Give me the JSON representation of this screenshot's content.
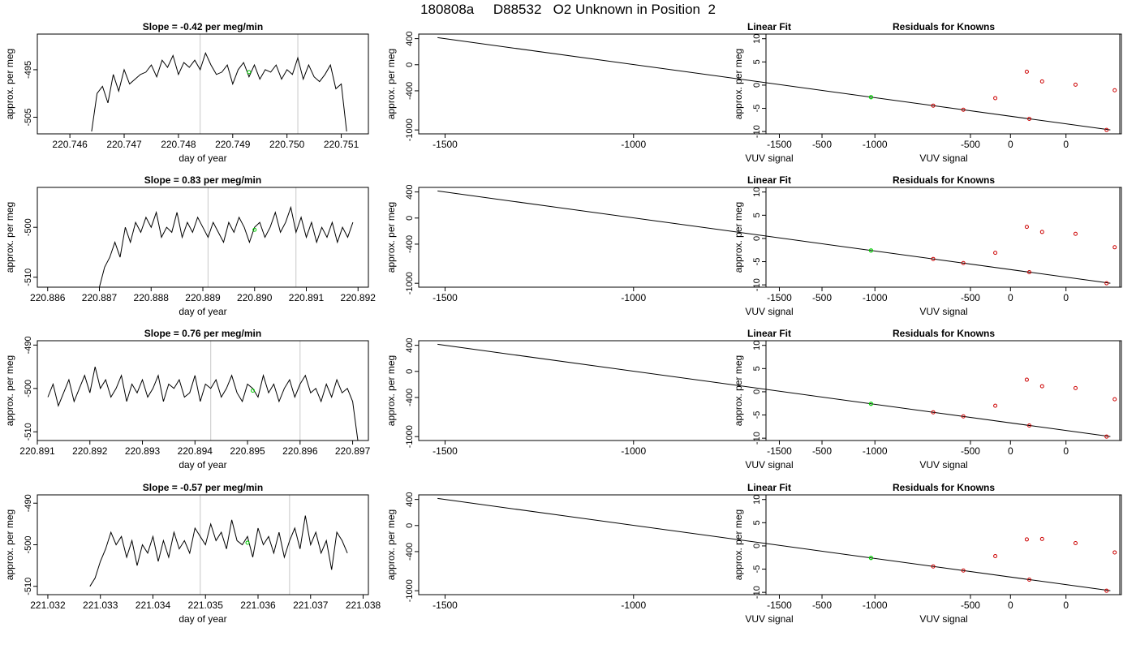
{
  "figure": {
    "title": "180808a     D88532   O2 Unknown in Position  2"
  },
  "colors": {
    "line": "#000000",
    "unknown_point": "#00cc00",
    "known_point": "#cc0000",
    "vline": "#c8c8c8"
  },
  "chart_data": [
    {
      "type": "line",
      "title": "Slope =  -0.42  per meg/min",
      "xlabel": "day of year",
      "ylabel": "approx. per meg",
      "xlim": [
        220.7454,
        220.7515
      ],
      "ylim": [
        -508.5,
        -487.5
      ],
      "xticks": [
        "220.746",
        "220.747",
        "220.748",
        "220.749",
        "220.750",
        "220.751"
      ],
      "yticks": [
        "-495",
        "-505"
      ],
      "vlines": [
        220.7484,
        220.7502
      ],
      "unknown_marker": {
        "x": 220.7493,
        "y": -495.5
      },
      "series": [
        {
          "x": [
            220.7464,
            220.7465,
            220.7466,
            220.7467,
            220.7468,
            220.7469,
            220.747,
            220.7471,
            220.7472,
            220.7473,
            220.7474,
            220.7475,
            220.7476,
            220.7477,
            220.7478,
            220.7479,
            220.748,
            220.7481,
            220.7482,
            220.7483,
            220.7484,
            220.7485,
            220.7486,
            220.7487,
            220.7488,
            220.7489,
            220.749,
            220.7491,
            220.7492,
            220.7493,
            220.7494,
            220.7495,
            220.7496,
            220.7497,
            220.7498,
            220.7499,
            220.75,
            220.7501,
            220.7502,
            220.7503,
            220.7504,
            220.7505,
            220.7506,
            220.7507,
            220.7508,
            220.7509,
            220.751,
            220.7511
          ],
          "y": [
            -508,
            -500,
            -498.5,
            -502,
            -496,
            -499.5,
            -495,
            -498,
            -497,
            -496,
            -495.5,
            -494,
            -496.5,
            -493,
            -494.5,
            -492,
            -496,
            -493.5,
            -494.5,
            -493,
            -495,
            -491.5,
            -494,
            -496,
            -495.5,
            -494,
            -498,
            -495,
            -493.5,
            -496.5,
            -494,
            -497,
            -495,
            -495.5,
            -494,
            -497,
            -495,
            -496,
            -492.5,
            -497,
            -494,
            -496.5,
            -497.5,
            -496,
            -494,
            -499,
            -498,
            -508
          ]
        }
      ]
    },
    {
      "type": "scatter",
      "title": "Linear Fit",
      "xlabel": "VUV signal",
      "ylabel": "approx. per meg",
      "xlim": [
        -1570,
        290
      ],
      "ylim": [
        -1060,
        470
      ],
      "xticks": [
        "-1500",
        "-1000",
        "-500",
        "0"
      ],
      "yticks": [
        "400",
        "0",
        "-400",
        "-1000"
      ],
      "fit_line": {
        "x": [
          -1520,
          265
        ],
        "y": [
          415,
          -1000
        ]
      },
      "unknown_points": [
        {
          "x": -370,
          "y": -497
        }
      ],
      "known_points": [
        {
          "x": -205,
          "y": -627
        },
        {
          "x": -125,
          "y": -690
        },
        {
          "x": 50,
          "y": -830
        },
        {
          "x": 255,
          "y": -1000
        }
      ]
    },
    {
      "type": "scatter",
      "title": "Residuals for Knowns",
      "xlabel": "VUV signal",
      "ylabel": "approx. per meg",
      "xlim": [
        -1570,
        290
      ],
      "ylim": [
        -10.5,
        11
      ],
      "xticks": [
        "-1500",
        "-1000",
        "-500",
        "0"
      ],
      "yticks": [
        "10",
        "5",
        "0",
        "-5",
        "-10"
      ],
      "known_points": [
        {
          "x": -370,
          "y": -2.8
        },
        {
          "x": -205,
          "y": 2.9
        },
        {
          "x": -125,
          "y": 0.8
        },
        {
          "x": 50,
          "y": 0.1
        },
        {
          "x": 255,
          "y": -1.1
        }
      ]
    },
    {
      "type": "line",
      "title": "Slope =  0.83  per meg/min",
      "xlabel": "day of year",
      "ylabel": "approx. per meg",
      "xlim": [
        220.8858,
        220.8922
      ],
      "ylim": [
        -512,
        -492
      ],
      "xticks": [
        "220.886",
        "220.887",
        "220.888",
        "220.889",
        "220.890",
        "220.891",
        "220.892"
      ],
      "yticks": [
        "-500",
        "-510"
      ],
      "vlines": [
        220.8891,
        220.8908
      ],
      "unknown_marker": {
        "x": 220.89,
        "y": -500.5
      },
      "series": [
        {
          "x": [
            220.887,
            220.8871,
            220.8872,
            220.8873,
            220.8874,
            220.8875,
            220.8876,
            220.8877,
            220.8878,
            220.8879,
            220.888,
            220.8881,
            220.8882,
            220.8883,
            220.8884,
            220.8885,
            220.8886,
            220.8887,
            220.8888,
            220.8889,
            220.889,
            220.8891,
            220.8892,
            220.8893,
            220.8894,
            220.8895,
            220.8896,
            220.8897,
            220.8898,
            220.8899,
            220.89,
            220.8901,
            220.8902,
            220.8903,
            220.8904,
            220.8905,
            220.8906,
            220.8907,
            220.8908,
            220.8909,
            220.891,
            220.8911,
            220.8912,
            220.8913,
            220.8914,
            220.8915,
            220.8916,
            220.8917,
            220.8918,
            220.8919
          ],
          "y": [
            -512,
            -508,
            -506,
            -503,
            -506,
            -500,
            -503,
            -499,
            -501,
            -498,
            -500,
            -497,
            -502,
            -500,
            -501,
            -497,
            -502,
            -499,
            -501,
            -498,
            -500,
            -502,
            -499,
            -501,
            -503,
            -499,
            -501,
            -498,
            -500,
            -503,
            -500,
            -499,
            -502,
            -500,
            -497,
            -501,
            -499,
            -496,
            -501,
            -498,
            -502,
            -499,
            -503,
            -500,
            -502,
            -499,
            -503,
            -500,
            -502,
            -499
          ]
        }
      ]
    },
    {
      "type": "scatter",
      "title": "Linear Fit",
      "xlabel": "VUV signal",
      "ylabel": "approx. per meg",
      "xlim": [
        -1570,
        290
      ],
      "ylim": [
        -1060,
        470
      ],
      "xticks": [
        "-1500",
        "-1000",
        "-500",
        "0"
      ],
      "yticks": [
        "400",
        "0",
        "-400",
        "-1000"
      ],
      "fit_line": {
        "x": [
          -1520,
          265
        ],
        "y": [
          415,
          -1000
        ]
      },
      "unknown_points": [
        {
          "x": -370,
          "y": -497
        }
      ],
      "known_points": [
        {
          "x": -205,
          "y": -627
        },
        {
          "x": -125,
          "y": -690
        },
        {
          "x": 50,
          "y": -830
        },
        {
          "x": 255,
          "y": -1000
        }
      ]
    },
    {
      "type": "scatter",
      "title": "Residuals for Knowns",
      "xlabel": "VUV signal",
      "ylabel": "approx. per meg",
      "xlim": [
        -1570,
        290
      ],
      "ylim": [
        -10.5,
        11
      ],
      "xticks": [
        "-1500",
        "-1000",
        "-500",
        "0"
      ],
      "yticks": [
        "10",
        "5",
        "0",
        "-5",
        "-10"
      ],
      "known_points": [
        {
          "x": -370,
          "y": -3.1
        },
        {
          "x": -205,
          "y": 2.5
        },
        {
          "x": -125,
          "y": 1.4
        },
        {
          "x": 50,
          "y": 1.0
        },
        {
          "x": 255,
          "y": -1.9
        }
      ]
    },
    {
      "type": "line",
      "title": "Slope =  0.76  per meg/min",
      "xlabel": "day of year",
      "ylabel": "approx. per meg",
      "xlim": [
        220.891,
        220.8973
      ],
      "ylim": [
        -512,
        -489
      ],
      "xticks": [
        "220.891",
        "220.892",
        "220.893",
        "220.894",
        "220.895",
        "220.896",
        "220.897"
      ],
      "yticks": [
        "-490",
        "-500",
        "-510"
      ],
      "vlines": [
        220.8943,
        220.896
      ],
      "unknown_marker": {
        "x": 220.8951,
        "y": -500.5
      },
      "series": [
        {
          "x": [
            220.8912,
            220.8913,
            220.8914,
            220.8915,
            220.8916,
            220.8917,
            220.8918,
            220.8919,
            220.892,
            220.8921,
            220.8922,
            220.8923,
            220.8924,
            220.8925,
            220.8926,
            220.8927,
            220.8928,
            220.8929,
            220.893,
            220.8931,
            220.8932,
            220.8933,
            220.8934,
            220.8935,
            220.8936,
            220.8937,
            220.8938,
            220.8939,
            220.894,
            220.8941,
            220.8942,
            220.8943,
            220.8944,
            220.8945,
            220.8946,
            220.8947,
            220.8948,
            220.8949,
            220.895,
            220.8951,
            220.8952,
            220.8953,
            220.8954,
            220.8955,
            220.8956,
            220.8957,
            220.8958,
            220.8959,
            220.896,
            220.8961,
            220.8962,
            220.8963,
            220.8964,
            220.8965,
            220.8966,
            220.8967,
            220.8968,
            220.8969,
            220.897,
            220.8971
          ],
          "y": [
            -502,
            -499,
            -504,
            -501,
            -498,
            -503,
            -500,
            -497,
            -501,
            -495,
            -500,
            -498,
            -502,
            -500,
            -497,
            -503,
            -499,
            -501,
            -498,
            -502,
            -500,
            -497,
            -503,
            -499,
            -500,
            -498,
            -502,
            -501,
            -497,
            -503,
            -499,
            -500,
            -498,
            -502,
            -500,
            -497,
            -501,
            -503,
            -499,
            -500,
            -502,
            -497,
            -501,
            -499,
            -503,
            -500,
            -498,
            -502,
            -499,
            -497,
            -501,
            -500,
            -503,
            -499,
            -502,
            -498,
            -501,
            -500,
            -503,
            -512
          ]
        }
      ]
    },
    {
      "type": "scatter",
      "title": "Linear Fit",
      "xlabel": "VUV signal",
      "ylabel": "approx. per meg",
      "xlim": [
        -1570,
        290
      ],
      "ylim": [
        -1060,
        470
      ],
      "xticks": [
        "-1500",
        "-1000",
        "-500",
        "0"
      ],
      "yticks": [
        "400",
        "0",
        "-400",
        "-1000"
      ],
      "fit_line": {
        "x": [
          -1520,
          265
        ],
        "y": [
          415,
          -1000
        ]
      },
      "unknown_points": [
        {
          "x": -370,
          "y": -497
        }
      ],
      "known_points": [
        {
          "x": -205,
          "y": -627
        },
        {
          "x": -125,
          "y": -690
        },
        {
          "x": 50,
          "y": -830
        },
        {
          "x": 255,
          "y": -1000
        }
      ]
    },
    {
      "type": "scatter",
      "title": "Residuals for Knowns",
      "xlabel": "VUV signal",
      "ylabel": "approx. per meg",
      "xlim": [
        -1570,
        290
      ],
      "ylim": [
        -10.5,
        11
      ],
      "xticks": [
        "-1500",
        "-1000",
        "-500",
        "0"
      ],
      "yticks": [
        "10",
        "5",
        "0",
        "-5",
        "-10"
      ],
      "known_points": [
        {
          "x": -370,
          "y": -3.0
        },
        {
          "x": -205,
          "y": 2.6
        },
        {
          "x": -125,
          "y": 1.2
        },
        {
          "x": 50,
          "y": 0.8
        },
        {
          "x": 255,
          "y": -1.6
        }
      ]
    },
    {
      "type": "line",
      "title": "Slope =  -0.57  per meg/min",
      "xlabel": "day of year",
      "ylabel": "approx. per meg",
      "xlim": [
        221.0318,
        221.0381
      ],
      "ylim": [
        -512,
        -488
      ],
      "xticks": [
        "221.032",
        "221.033",
        "221.034",
        "221.035",
        "221.036",
        "221.037",
        "221.038"
      ],
      "yticks": [
        "-490",
        "-500",
        "-510"
      ],
      "vlines": [
        221.0349,
        221.0366
      ],
      "unknown_marker": {
        "x": 221.0358,
        "y": -499.5
      },
      "series": [
        {
          "x": [
            221.0328,
            221.0329,
            221.033,
            221.0331,
            221.0332,
            221.0333,
            221.0334,
            221.0335,
            221.0336,
            221.0337,
            221.0338,
            221.0339,
            221.034,
            221.0341,
            221.0342,
            221.0343,
            221.0344,
            221.0345,
            221.0346,
            221.0347,
            221.0348,
            221.0349,
            221.035,
            221.0351,
            221.0352,
            221.0353,
            221.0354,
            221.0355,
            221.0356,
            221.0357,
            221.0358,
            221.0359,
            221.036,
            221.0361,
            221.0362,
            221.0363,
            221.0364,
            221.0365,
            221.0366,
            221.0367,
            221.0368,
            221.0369,
            221.037,
            221.0371,
            221.0372,
            221.0373,
            221.0374,
            221.0375,
            221.0376,
            221.0377
          ],
          "y": [
            -510,
            -508,
            -504,
            -501,
            -497,
            -500,
            -498,
            -503,
            -499,
            -505,
            -500,
            -502,
            -498,
            -504,
            -499,
            -503,
            -497,
            -501,
            -499,
            -502,
            -496,
            -498,
            -500,
            -495,
            -499,
            -497,
            -501,
            -494,
            -499,
            -500,
            -498,
            -503,
            -496,
            -500,
            -498,
            -502,
            -497,
            -503,
            -499,
            -496,
            -501,
            -493,
            -500,
            -497,
            -502,
            -499,
            -506,
            -497,
            -499,
            -502
          ]
        }
      ]
    },
    {
      "type": "scatter",
      "title": "Linear Fit",
      "xlabel": "VUV signal",
      "ylabel": "approx. per meg",
      "xlim": [
        -1570,
        290
      ],
      "ylim": [
        -1060,
        470
      ],
      "xticks": [
        "-1500",
        "-1000",
        "-500",
        "0"
      ],
      "yticks": [
        "400",
        "0",
        "-400",
        "-1000"
      ],
      "fit_line": {
        "x": [
          -1520,
          265
        ],
        "y": [
          415,
          -1000
        ]
      },
      "unknown_points": [
        {
          "x": -370,
          "y": -497
        }
      ],
      "known_points": [
        {
          "x": -205,
          "y": -627
        },
        {
          "x": -125,
          "y": -690
        },
        {
          "x": 50,
          "y": -830
        },
        {
          "x": 255,
          "y": -1000
        }
      ]
    },
    {
      "type": "scatter",
      "title": "Residuals for Knowns",
      "xlabel": "VUV signal",
      "ylabel": "approx. per meg",
      "xlim": [
        -1570,
        290
      ],
      "ylim": [
        -10.5,
        11
      ],
      "xticks": [
        "-1500",
        "-1000",
        "-500",
        "0"
      ],
      "yticks": [
        "10",
        "5",
        "0",
        "-5",
        "-10"
      ],
      "known_points": [
        {
          "x": -370,
          "y": -2.2
        },
        {
          "x": -205,
          "y": 1.4
        },
        {
          "x": -125,
          "y": 1.5
        },
        {
          "x": 50,
          "y": 0.6
        },
        {
          "x": 255,
          "y": -1.4
        }
      ]
    }
  ]
}
